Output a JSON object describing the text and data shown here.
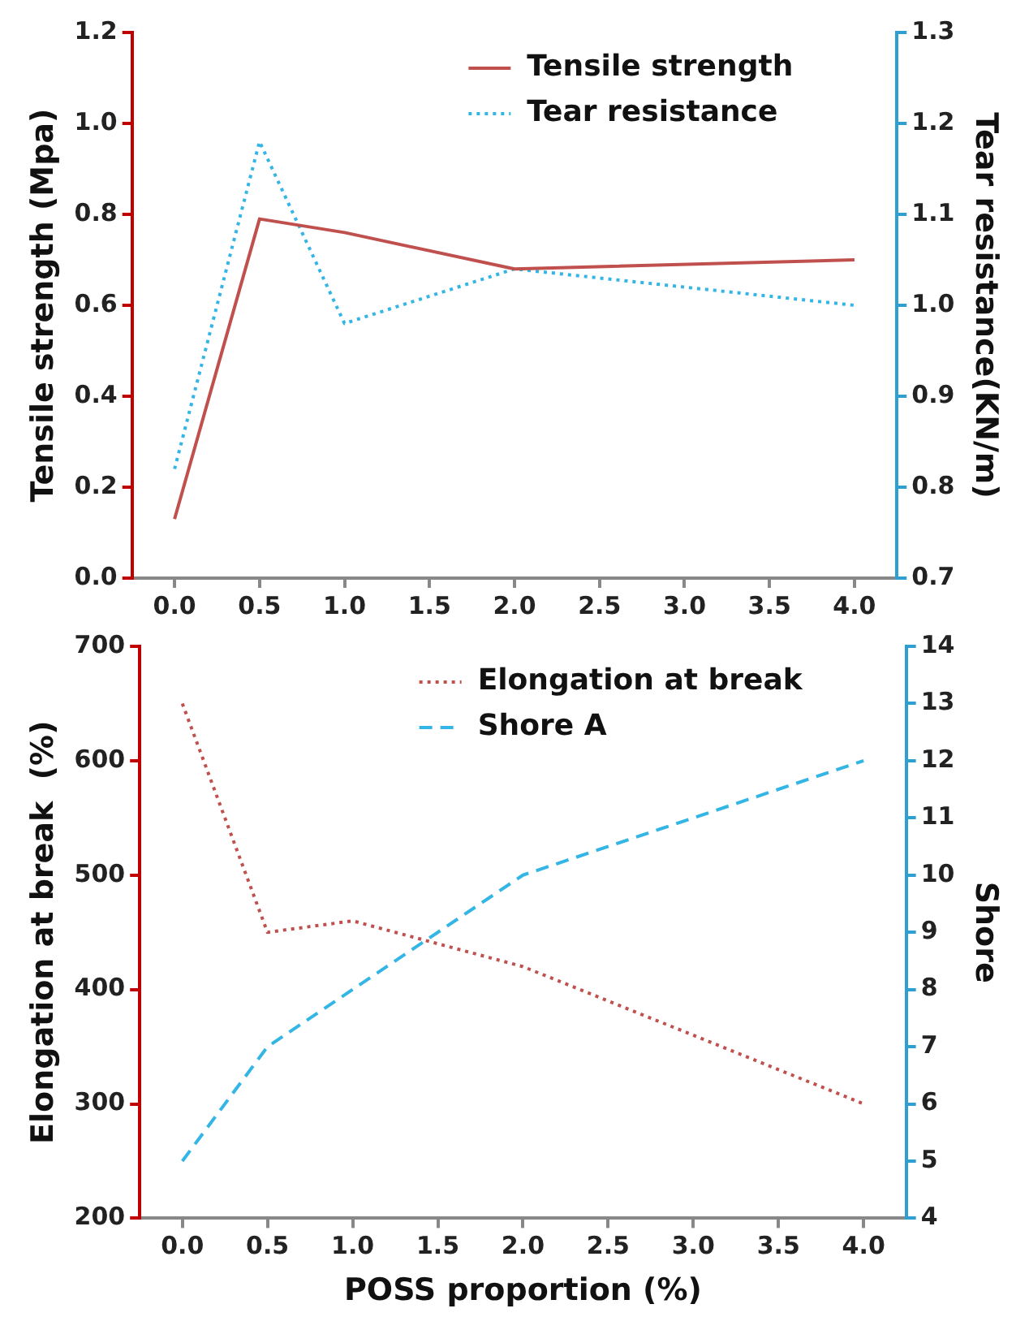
{
  "chart_data": [
    {
      "type": "line",
      "ylabel": "Tensile strength (Mpa)",
      "y2label": "Tear resistance(KN/m)",
      "x": [
        0,
        0.5,
        1,
        2,
        4
      ],
      "series": [
        {
          "name": "Tensile strength",
          "color": "#c0504d",
          "line_style": "solid",
          "values": [
            0.13,
            0.79,
            0.76,
            0.68,
            0.7
          ]
        },
        {
          "name": "Tear resistance",
          "color": "#33b5e5",
          "line_style": "dotted",
          "axis": "y2",
          "values": [
            0.82,
            1.18,
            0.98,
            1.04,
            1.0
          ]
        }
      ],
      "xlim": [
        -0.25,
        4.25
      ],
      "xticks": [
        {
          "value": 0,
          "label": "0.0"
        },
        {
          "value": 0.5,
          "label": "0.5"
        },
        {
          "value": 1,
          "label": "1.0"
        },
        {
          "value": 1.5,
          "label": "1.5"
        },
        {
          "value": 2,
          "label": "2.0"
        },
        {
          "value": 2.5,
          "label": "2.5"
        },
        {
          "value": 3,
          "label": "3.0"
        },
        {
          "value": 3.5,
          "label": "3.5"
        },
        {
          "value": 4,
          "label": "4.0"
        }
      ],
      "ylim": [
        0,
        1.2
      ],
      "yticks": [
        {
          "value": 0,
          "label": "0.0"
        },
        {
          "value": 0.2,
          "label": "0.2"
        },
        {
          "value": 0.4,
          "label": "0.4"
        },
        {
          "value": 0.6,
          "label": "0.6"
        },
        {
          "value": 0.8,
          "label": "0.8"
        },
        {
          "value": 1,
          "label": "1.0"
        },
        {
          "value": 1.2,
          "label": "1.2"
        }
      ],
      "y2lim": [
        0.7,
        1.3
      ],
      "y2ticks": [
        {
          "value": 0.7,
          "label": "0.7"
        },
        {
          "value": 0.8,
          "label": "0.8"
        },
        {
          "value": 0.9,
          "label": "0.9"
        },
        {
          "value": 1,
          "label": "1.0"
        },
        {
          "value": 1.1,
          "label": "1.1"
        },
        {
          "value": 1.2,
          "label": "1.2"
        },
        {
          "value": 1.3,
          "label": "1.3"
        }
      ],
      "legend": "top right",
      "marker": "none"
    },
    {
      "type": "line",
      "xlabel": "POSS proportion (%)",
      "ylabel": "Elongation at break  (%)",
      "y2label": "Shore",
      "x": [
        0,
        0.5,
        1,
        2,
        4
      ],
      "series": [
        {
          "name": "Elongation at break",
          "color": "#c0504d",
          "line_style": "dotted",
          "values": [
            650,
            450,
            460,
            420,
            300
          ]
        },
        {
          "name": "Shore A",
          "color": "#33b5e5",
          "line_style": "dashed",
          "axis": "y2",
          "values": [
            5,
            7,
            8,
            10,
            12
          ]
        }
      ],
      "xlim": [
        -0.25,
        4.25
      ],
      "xticks": [
        {
          "value": 0,
          "label": "0.0"
        },
        {
          "value": 0.5,
          "label": "0.5"
        },
        {
          "value": 1,
          "label": "1.0"
        },
        {
          "value": 1.5,
          "label": "1.5"
        },
        {
          "value": 2,
          "label": "2.0"
        },
        {
          "value": 2.5,
          "label": "2.5"
        },
        {
          "value": 3,
          "label": "3.0"
        },
        {
          "value": 3.5,
          "label": "3.5"
        },
        {
          "value": 4,
          "label": "4.0"
        }
      ],
      "ylim": [
        200,
        700
      ],
      "yticks": [
        200,
        300,
        400,
        500,
        600,
        700
      ],
      "y2lim": [
        4,
        14
      ],
      "y2ticks": [
        4,
        5,
        6,
        7,
        8,
        9,
        10,
        11,
        12,
        13,
        14
      ],
      "legend": "top right",
      "marker": "none"
    }
  ]
}
